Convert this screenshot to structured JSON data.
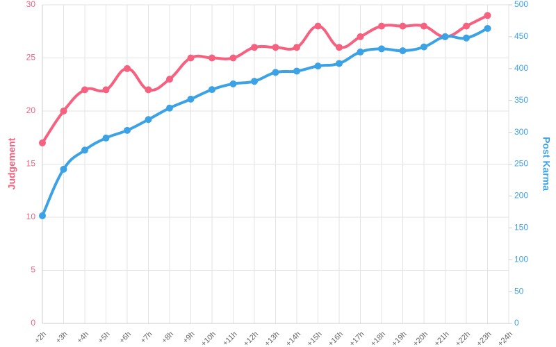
{
  "chart_data": {
    "type": "line",
    "categories": [
      "+2h",
      "+3h",
      "+4h",
      "+5h",
      "+6h",
      "+7h",
      "+8h",
      "+9h",
      "+10h",
      "+11h",
      "+12h",
      "+13h",
      "+14h",
      "+15h",
      "+16h",
      "+17h",
      "+18h",
      "+19h",
      "+20h",
      "+21h",
      "+22h",
      "+23h",
      "+24h"
    ],
    "series": [
      {
        "name": "Judgement",
        "color": "#f5617f",
        "axis": "y",
        "values": [
          17,
          20,
          22,
          22,
          24,
          22,
          23,
          25,
          25,
          25,
          26,
          26,
          26,
          28,
          26,
          27,
          28,
          28,
          28,
          27,
          28,
          29,
          null
        ]
      },
      {
        "name": "Post Karma",
        "color": "#3ca2e6",
        "axis": "y2",
        "values": [
          169,
          242,
          272,
          291,
          303,
          320,
          338,
          352,
          367,
          376,
          380,
          394,
          396,
          404,
          408,
          426,
          431,
          428,
          434,
          450,
          448,
          463,
          null
        ]
      }
    ],
    "ylabel": "Judgement",
    "y2label": "Post Karma",
    "ylim": [
      0,
      30
    ],
    "yticks": [
      0,
      5,
      10,
      15,
      20,
      25,
      30
    ],
    "y2lim": [
      0,
      500
    ],
    "y2ticks": [
      0,
      50,
      100,
      150,
      200,
      250,
      300,
      350,
      400,
      450,
      500
    ],
    "grid": true
  }
}
